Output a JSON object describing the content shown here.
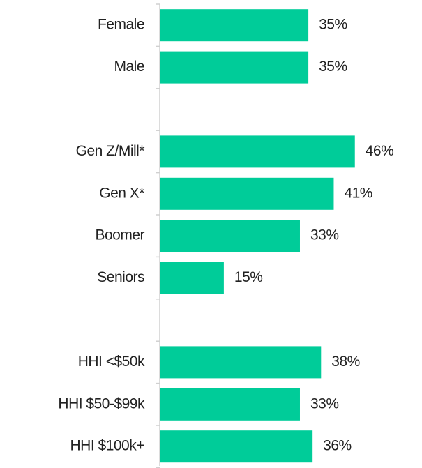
{
  "chart_data": {
    "type": "barh",
    "categories": [
      "Female",
      "Male",
      null,
      "Gen Z/Mill*",
      "Gen X*",
      "Boomer",
      "Seniors",
      null,
      "HHI <$50k",
      "HHI $50-$99k",
      "HHI $100k+"
    ],
    "values": [
      35,
      35,
      null,
      46,
      41,
      33,
      15,
      null,
      38,
      33,
      36
    ],
    "value_labels": [
      "35%",
      "35%",
      null,
      "46%",
      "41%",
      "33%",
      "15%",
      null,
      "38%",
      "33%",
      "36%"
    ],
    "color": "#00cc99"
  }
}
